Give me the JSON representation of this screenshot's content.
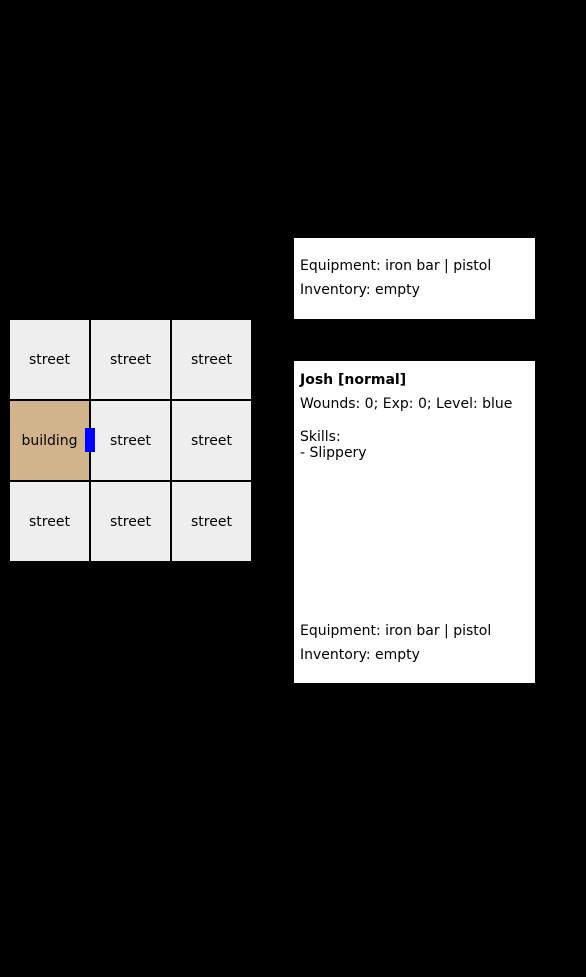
{
  "map": {
    "tiles": [
      {
        "label": "street",
        "type": "street"
      },
      {
        "label": "street",
        "type": "street"
      },
      {
        "label": "street",
        "type": "street"
      },
      {
        "label": "building",
        "type": "building"
      },
      {
        "label": "street",
        "type": "street"
      },
      {
        "label": "street",
        "type": "street"
      },
      {
        "label": "street",
        "type": "street"
      },
      {
        "label": "street",
        "type": "street"
      },
      {
        "label": "street",
        "type": "street"
      }
    ],
    "colors": {
      "street": "#eeeeee",
      "building": "#d2b48c",
      "door": "#0000ff",
      "background": "#000000"
    }
  },
  "top_panel": {
    "equipment": "Equipment: iron bar | pistol",
    "inventory": "Inventory: empty"
  },
  "character": {
    "name": "Josh [normal]",
    "stats": "Wounds: 0; Exp: 0; Level: blue",
    "skills_header": "Skills:",
    "skills": [
      "- Slippery"
    ],
    "equipment": "Equipment: iron bar | pistol",
    "inventory": "Inventory: empty"
  }
}
